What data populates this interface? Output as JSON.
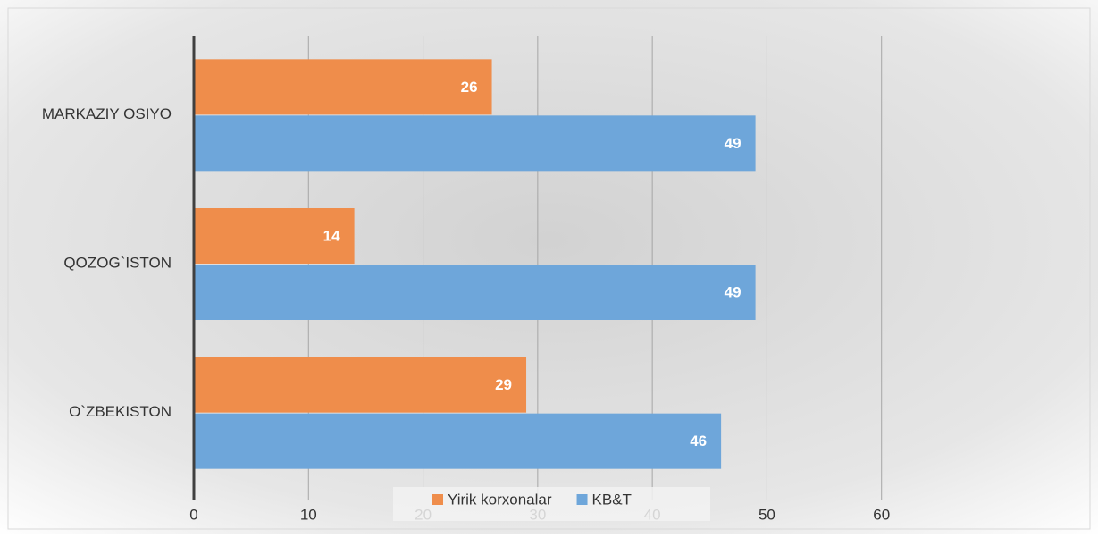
{
  "chart_data": {
    "type": "barh",
    "categories": [
      "MARKAZIY OSIYO",
      "QOZOG`ISTON",
      "O`ZBEKISTON"
    ],
    "series": [
      {
        "name": "Yirik korxonalar",
        "color": "#ef8d4b",
        "values": [
          26,
          14,
          29
        ]
      },
      {
        "name": "KB&T",
        "color": "#6ea6da",
        "values": [
          49,
          49,
          46
        ]
      }
    ],
    "xlim": [
      0,
      70
    ],
    "xticks": [
      0,
      10,
      20,
      30,
      40,
      50,
      60
    ],
    "grid": true,
    "legend": "bottom"
  }
}
